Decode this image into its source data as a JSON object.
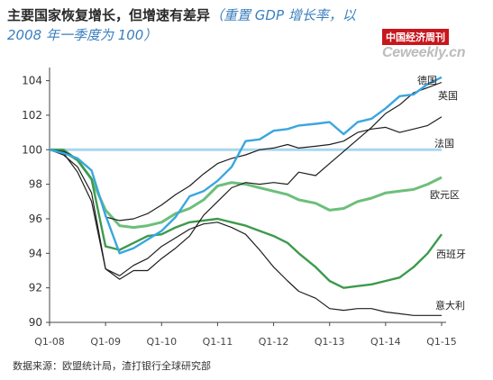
{
  "title": {
    "main": "主要国家恢复增长，但增速有差异",
    "subtitle": "（重置 GDP 增长率，以 2008 年一季度为 100）"
  },
  "watermark": {
    "top": "中国经济周刊",
    "bottom": "Ceweekly.cn"
  },
  "source": "数据来源：欧盟统计局，渣打银行全球研究部",
  "colors": {
    "reference": "#a9d7f0",
    "uk": "#3aa6df",
    "eurozone": "#6dbf7a",
    "spain": "#3d9a4c",
    "dark": "#1e1e1e"
  },
  "chart_data": {
    "type": "line",
    "x_ticks": [
      "Q1-08",
      "Q1-09",
      "Q1-10",
      "Q1-11",
      "Q1-12",
      "Q1-13",
      "Q1-14",
      "Q1-15"
    ],
    "x": [
      0,
      1,
      2,
      3,
      4,
      5,
      6,
      7,
      8,
      9,
      10,
      11,
      12,
      13,
      14,
      15,
      16,
      17,
      17.8,
      19,
      20,
      21,
      22,
      23,
      24,
      25,
      26,
      27,
      28
    ],
    "ylim": [
      90,
      104.5
    ],
    "yticks": [
      90,
      92,
      94,
      96,
      98,
      100,
      102,
      104
    ],
    "reference_line": 100,
    "series": [
      {
        "name": "德国",
        "values": [
          100,
          99.7,
          99.0,
          97.5,
          93.1,
          92.5,
          93.0,
          93.0,
          93.7,
          94.3,
          95.0,
          96.2,
          97.0,
          97.8,
          98.1,
          98.0,
          98.1,
          98.0,
          98.7,
          98.5,
          99.2,
          99.9,
          100.6,
          101.3,
          102.1,
          102.6,
          103.3,
          103.6,
          103.9
        ]
      },
      {
        "name": "英国",
        "values": [
          100,
          99.8,
          99.5,
          98.8,
          96.2,
          94.0,
          94.3,
          94.8,
          95.3,
          96.1,
          97.3,
          97.6,
          98.2,
          99.0,
          100.5,
          100.6,
          101.1,
          101.2,
          101.4,
          101.5,
          101.6,
          100.9,
          101.6,
          101.8,
          102.4,
          103.1,
          103.2,
          103.8,
          104.2
        ]
      },
      {
        "name": "法国",
        "values": [
          100,
          99.9,
          99.5,
          98.8,
          96.1,
          95.9,
          96.0,
          96.3,
          96.8,
          97.4,
          97.9,
          98.6,
          99.2,
          99.5,
          99.7,
          100.0,
          100.1,
          100.3,
          100.1,
          100.2,
          100.3,
          100.5,
          101.0,
          101.2,
          101.3,
          101.0,
          101.2,
          101.4,
          101.9
        ]
      },
      {
        "name": "欧元区",
        "values": [
          100,
          99.9,
          99.4,
          98.3,
          96.5,
          95.6,
          95.5,
          95.6,
          95.8,
          96.3,
          96.6,
          97.1,
          97.9,
          98.1,
          98.0,
          97.8,
          97.6,
          97.4,
          97.1,
          96.9,
          96.5,
          96.6,
          97.0,
          97.2,
          97.5,
          97.6,
          97.7,
          98.0,
          98.4
        ]
      },
      {
        "name": "西班牙",
        "values": [
          100,
          100.0,
          99.4,
          98.3,
          94.4,
          94.2,
          94.6,
          95.0,
          95.1,
          95.5,
          95.8,
          95.9,
          96.0,
          95.8,
          95.6,
          95.3,
          95.0,
          94.6,
          94.0,
          93.2,
          92.4,
          92.0,
          92.1,
          92.2,
          92.4,
          92.6,
          93.2,
          94.0,
          95.1
        ]
      },
      {
        "name": "意大利",
        "values": [
          100,
          99.8,
          98.7,
          97.0,
          93.1,
          92.7,
          93.3,
          93.7,
          94.4,
          94.9,
          95.4,
          95.7,
          95.8,
          95.5,
          95.1,
          94.2,
          93.2,
          92.4,
          91.8,
          91.4,
          90.8,
          90.7,
          90.8,
          90.8,
          90.6,
          90.5,
          90.4,
          90.4,
          90.4
        ]
      }
    ]
  }
}
